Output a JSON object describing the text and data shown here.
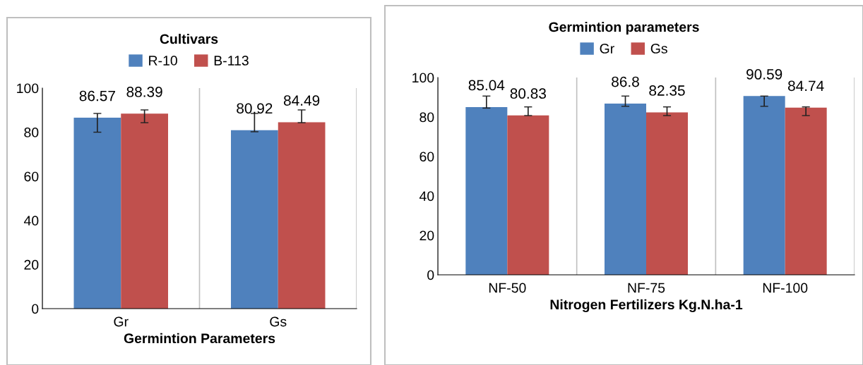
{
  "chart_data": [
    {
      "type": "bar",
      "title": "Cultivars",
      "xlabel": "Germintion Parameters",
      "categories": [
        "Gr",
        "Gs"
      ],
      "ylim": [
        0,
        100
      ],
      "yticks": [
        0,
        20,
        40,
        60,
        80,
        100
      ],
      "grid": "x",
      "legend": "top",
      "data_labels": true,
      "series": [
        {
          "name": "R-10",
          "color": "#4f81bd",
          "values": [
            86.57,
            80.92
          ],
          "errors": [
            [
              80,
              88.5
            ],
            [
              80.2,
              88.5
            ]
          ]
        },
        {
          "name": "B-113",
          "color": "#c0504d",
          "values": [
            88.39,
            84.49
          ],
          "errors": [
            [
              84.3,
              90.1
            ],
            [
              84.3,
              90.1
            ]
          ]
        }
      ]
    },
    {
      "type": "bar",
      "title": "Germintion parameters",
      "xlabel": "Nitrogen Fertilizers Kg.N.ha-1",
      "categories": [
        "NF-50",
        "NF-75",
        "NF-100"
      ],
      "ylim": [
        0,
        100
      ],
      "yticks": [
        0,
        20,
        40,
        60,
        80,
        100
      ],
      "grid": "x",
      "legend": "top",
      "data_labels": true,
      "series": [
        {
          "name": "Gr",
          "color": "#4f81bd",
          "values": [
            85.04,
            86.8,
            90.59
          ],
          "errors": [
            [
              84.5,
              90.6
            ],
            [
              85.4,
              90.6
            ],
            [
              85.4,
              90.6
            ]
          ]
        },
        {
          "name": "Gs",
          "color": "#c0504d",
          "values": [
            80.83,
            82.35,
            84.74
          ],
          "errors": [
            [
              80.7,
              85.1
            ],
            [
              80.7,
              85.1
            ],
            [
              80.7,
              85.1
            ]
          ]
        }
      ]
    }
  ]
}
